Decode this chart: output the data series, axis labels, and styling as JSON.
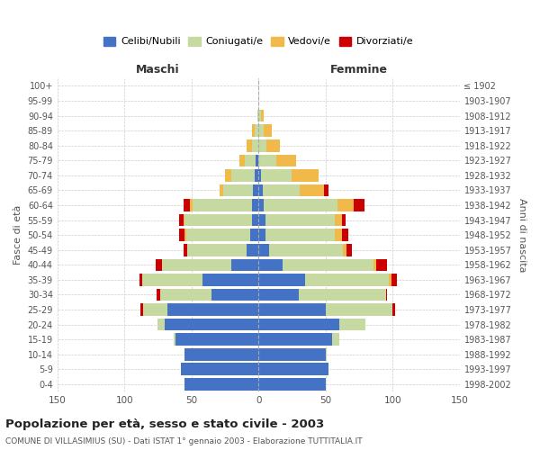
{
  "age_groups": [
    "0-4",
    "5-9",
    "10-14",
    "15-19",
    "20-24",
    "25-29",
    "30-34",
    "35-39",
    "40-44",
    "45-49",
    "50-54",
    "55-59",
    "60-64",
    "65-69",
    "70-74",
    "75-79",
    "80-84",
    "85-89",
    "90-94",
    "95-99",
    "100+"
  ],
  "birth_years": [
    "1998-2002",
    "1993-1997",
    "1988-1992",
    "1983-1987",
    "1978-1982",
    "1973-1977",
    "1968-1972",
    "1963-1967",
    "1958-1962",
    "1953-1957",
    "1948-1952",
    "1943-1947",
    "1938-1942",
    "1933-1937",
    "1928-1932",
    "1923-1927",
    "1918-1922",
    "1913-1917",
    "1908-1912",
    "1903-1907",
    "≤ 1902"
  ],
  "maschi": {
    "celibe": [
      55,
      58,
      55,
      62,
      70,
      68,
      35,
      42,
      20,
      9,
      6,
      5,
      5,
      4,
      3,
      2,
      0,
      0,
      0,
      0,
      0
    ],
    "coniugato": [
      0,
      0,
      0,
      1,
      5,
      18,
      38,
      45,
      52,
      44,
      48,
      50,
      44,
      22,
      17,
      8,
      5,
      3,
      1,
      0,
      0
    ],
    "vedovo": [
      0,
      0,
      0,
      0,
      0,
      0,
      0,
      0,
      0,
      0,
      1,
      1,
      2,
      3,
      5,
      4,
      4,
      2,
      0,
      0,
      0
    ],
    "divorziato": [
      0,
      0,
      0,
      0,
      0,
      2,
      3,
      2,
      5,
      3,
      4,
      3,
      5,
      0,
      0,
      0,
      0,
      0,
      0,
      0,
      0
    ]
  },
  "femmine": {
    "nubile": [
      50,
      52,
      50,
      55,
      60,
      50,
      30,
      35,
      18,
      8,
      5,
      5,
      4,
      3,
      2,
      0,
      0,
      0,
      0,
      0,
      0
    ],
    "coniugata": [
      0,
      0,
      1,
      5,
      20,
      50,
      65,
      62,
      68,
      55,
      52,
      52,
      55,
      28,
      23,
      13,
      6,
      4,
      2,
      0,
      0
    ],
    "vedova": [
      0,
      0,
      0,
      0,
      0,
      0,
      0,
      2,
      2,
      3,
      5,
      5,
      12,
      18,
      20,
      15,
      10,
      6,
      2,
      0,
      0
    ],
    "divorziata": [
      0,
      0,
      0,
      0,
      0,
      2,
      1,
      4,
      8,
      4,
      5,
      3,
      8,
      3,
      0,
      0,
      0,
      0,
      0,
      0,
      0
    ]
  },
  "colors": {
    "celibe": "#4472c4",
    "coniugato": "#c5d9a0",
    "vedovo": "#f0b94a",
    "divorziato": "#cc0000"
  },
  "title": "Popolazione per età, sesso e stato civile - 2003",
  "subtitle": "COMUNE DI VILLASIMIUS (SU) - Dati ISTAT 1° gennaio 2003 - Elaborazione TUTTITALIA.IT",
  "xlabel_maschi": "Maschi",
  "xlabel_femmine": "Femmine",
  "ylabel_left": "Fasce di età",
  "ylabel_right": "Anni di nascita",
  "xlim": 150,
  "legend_labels": [
    "Celibi/Nubili",
    "Coniugati/e",
    "Vedovi/e",
    "Divorziati/e"
  ],
  "background_color": "#ffffff",
  "grid_color": "#cccccc"
}
